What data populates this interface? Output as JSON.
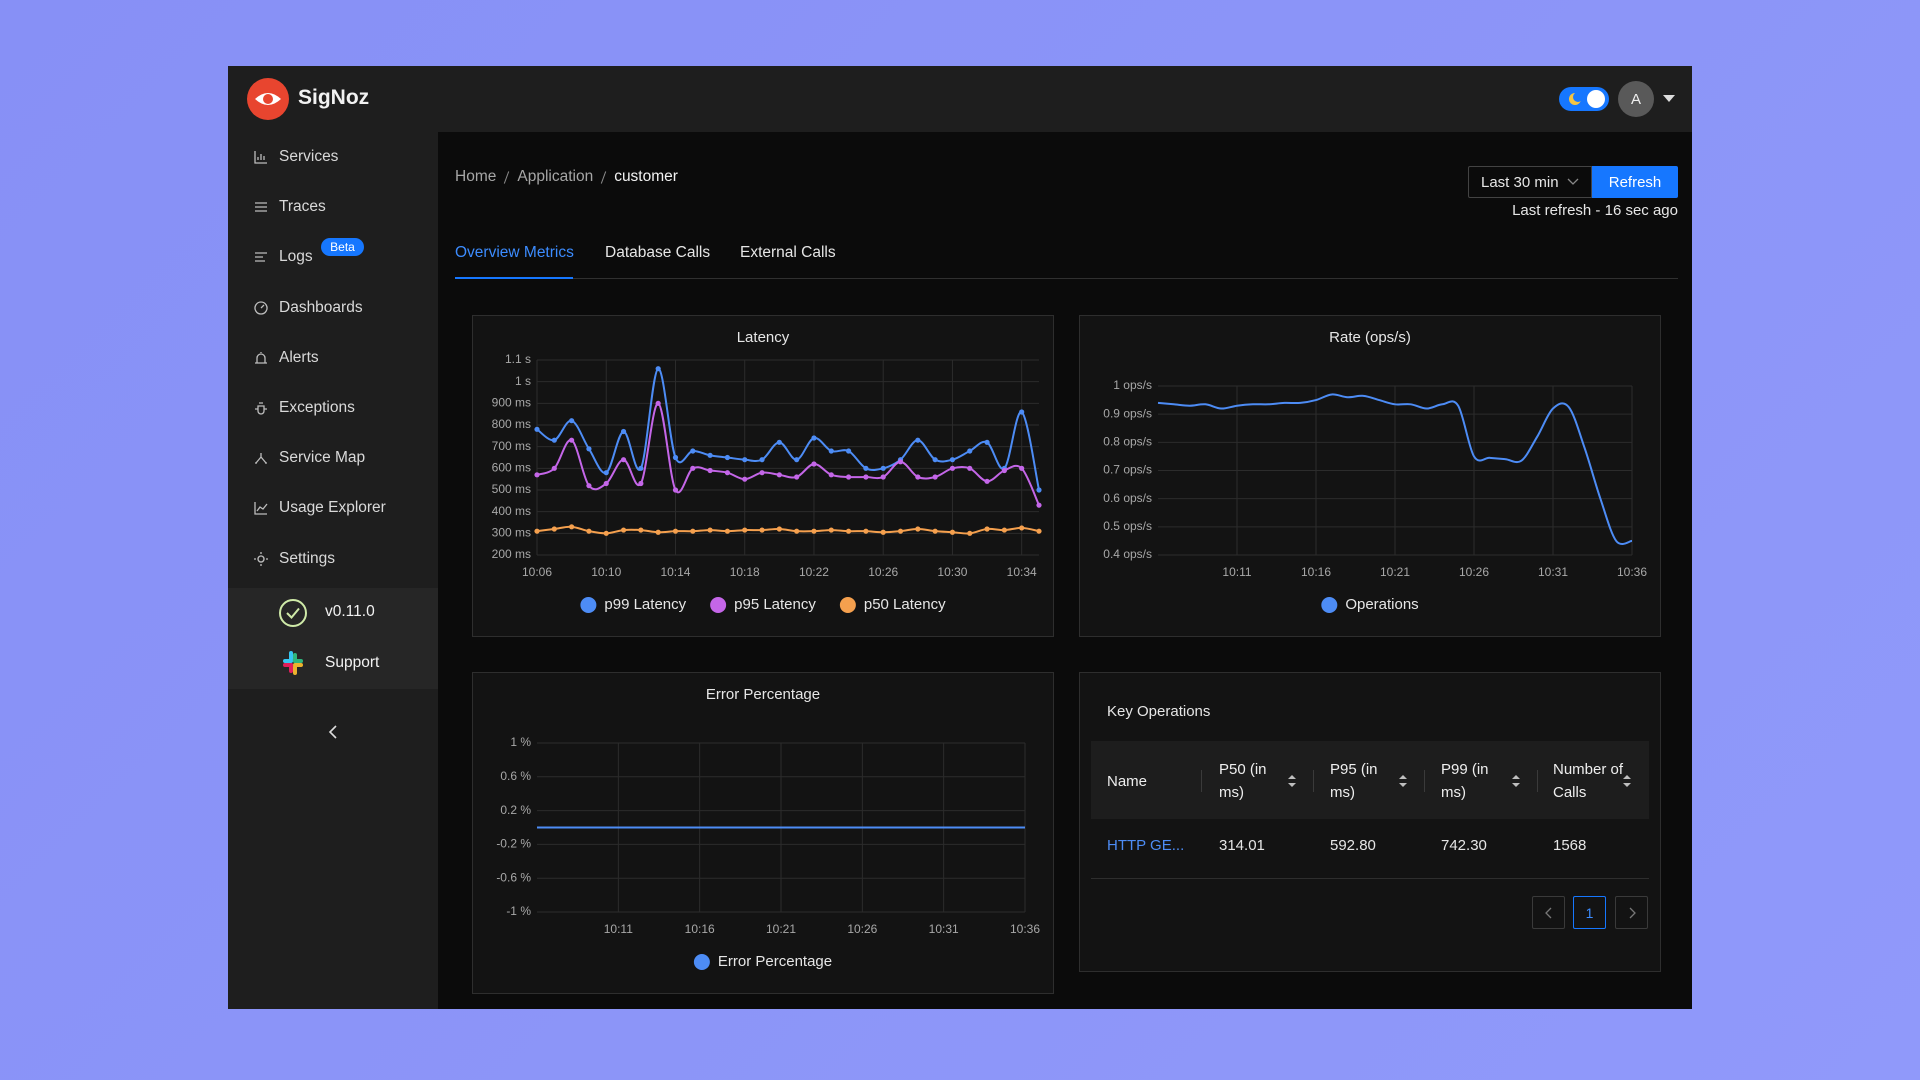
{
  "header": {
    "brand": "SigNoz",
    "avatar": "A"
  },
  "sidebar": {
    "items": [
      "Services",
      "Traces",
      "Logs",
      "Dashboards",
      "Alerts",
      "Exceptions",
      "Service Map",
      "Usage Explorer",
      "Settings"
    ],
    "badge": "Beta",
    "version": "v0.11.0",
    "support": "Support"
  },
  "breadcrumb": [
    "Home",
    "Application",
    "customer"
  ],
  "time_range": "Last 30 min",
  "refresh": "Refresh",
  "last_refresh": "Last refresh - 16 sec ago",
  "tabs": [
    "Overview Metrics",
    "Database Calls",
    "External Calls"
  ],
  "chart_data": [
    {
      "type": "line",
      "title": "Latency",
      "x": [
        "10:06",
        "10:07",
        "10:08",
        "10:09",
        "10:10",
        "10:11",
        "10:12",
        "10:13",
        "10:14",
        "10:15",
        "10:16",
        "10:17",
        "10:18",
        "10:19",
        "10:20",
        "10:21",
        "10:22",
        "10:23",
        "10:24",
        "10:25",
        "10:26",
        "10:27",
        "10:28",
        "10:29",
        "10:30",
        "10:31",
        "10:32",
        "10:33",
        "10:34",
        "10:35"
      ],
      "xlim": [
        "10:06",
        "10:35"
      ],
      "xticks": [
        "10:06",
        "10:10",
        "10:14",
        "10:18",
        "10:22",
        "10:26",
        "10:30",
        "10:34"
      ],
      "ylim": [
        200,
        1100
      ],
      "yticks": [
        {
          "value": 200,
          "label": "200 ms"
        },
        {
          "value": 300,
          "label": "300 ms"
        },
        {
          "value": 400,
          "label": "400 ms"
        },
        {
          "value": 500,
          "label": "500 ms"
        },
        {
          "value": 600,
          "label": "600 ms"
        },
        {
          "value": 700,
          "label": "700 ms"
        },
        {
          "value": 800,
          "label": "800 ms"
        },
        {
          "value": 900,
          "label": "900 ms"
        },
        {
          "value": 1000,
          "label": "1 s"
        },
        {
          "value": 1100,
          "label": "1.1 s"
        }
      ],
      "grid": true,
      "markers": true,
      "series": [
        {
          "name": "p99 Latency",
          "color": "#4d8cf5",
          "values": [
            780,
            730,
            820,
            690,
            580,
            770,
            600,
            1060,
            650,
            680,
            660,
            650,
            640,
            640,
            720,
            640,
            740,
            680,
            680,
            600,
            600,
            640,
            730,
            640,
            640,
            680,
            720,
            600,
            860,
            500
          ]
        },
        {
          "name": "p95 Latency",
          "color": "#c466e8",
          "values": [
            570,
            600,
            730,
            520,
            530,
            640,
            530,
            900,
            500,
            600,
            590,
            580,
            550,
            580,
            570,
            560,
            620,
            570,
            560,
            560,
            560,
            630,
            560,
            560,
            600,
            600,
            540,
            590,
            600,
            430
          ]
        },
        {
          "name": "p50 Latency",
          "color": "#f5a04e",
          "values": [
            310,
            320,
            330,
            310,
            300,
            315,
            315,
            305,
            310,
            310,
            315,
            310,
            315,
            315,
            320,
            310,
            310,
            315,
            310,
            310,
            305,
            310,
            320,
            310,
            305,
            300,
            320,
            315,
            325,
            310
          ]
        }
      ]
    },
    {
      "type": "line",
      "title": "Rate (ops/s)",
      "x": [
        "10:06",
        "10:07",
        "10:08",
        "10:09",
        "10:10",
        "10:11",
        "10:12",
        "10:13",
        "10:14",
        "10:15",
        "10:16",
        "10:17",
        "10:18",
        "10:19",
        "10:20",
        "10:21",
        "10:22",
        "10:23",
        "10:24",
        "10:25",
        "10:26",
        "10:27",
        "10:28",
        "10:29",
        "10:30",
        "10:31",
        "10:32",
        "10:33",
        "10:34",
        "10:35",
        "10:36"
      ],
      "xlim": [
        "10:06",
        "10:36"
      ],
      "xticks": [
        "10:11",
        "10:16",
        "10:21",
        "10:26",
        "10:31",
        "10:36"
      ],
      "ylim": [
        0.4,
        1
      ],
      "yticks": [
        {
          "value": 0.4,
          "label": "0.4 ops/s"
        },
        {
          "value": 0.5,
          "label": "0.5 ops/s"
        },
        {
          "value": 0.6,
          "label": "0.6 ops/s"
        },
        {
          "value": 0.7,
          "label": "0.7 ops/s"
        },
        {
          "value": 0.8,
          "label": "0.8 ops/s"
        },
        {
          "value": 0.9,
          "label": "0.9 ops/s"
        },
        {
          "value": 1,
          "label": "1 ops/s"
        }
      ],
      "grid": true,
      "markers": false,
      "series": [
        {
          "name": "Operations",
          "color": "#4d8cf5",
          "values": [
            0.94,
            0.935,
            0.93,
            0.935,
            0.92,
            0.93,
            0.935,
            0.935,
            0.94,
            0.94,
            0.95,
            0.97,
            0.96,
            0.965,
            0.95,
            0.935,
            0.935,
            0.92,
            0.935,
            0.93,
            0.75,
            0.745,
            0.74,
            0.735,
            0.82,
            0.92,
            0.925,
            0.78,
            0.6,
            0.45,
            0.45
          ]
        }
      ]
    },
    {
      "type": "line",
      "title": "Error Percentage",
      "x": [
        "10:06",
        "10:07",
        "10:08",
        "10:09",
        "10:10",
        "10:11",
        "10:12",
        "10:13",
        "10:14",
        "10:15",
        "10:16",
        "10:17",
        "10:18",
        "10:19",
        "10:20",
        "10:21",
        "10:22",
        "10:23",
        "10:24",
        "10:25",
        "10:26",
        "10:27",
        "10:28",
        "10:29",
        "10:30",
        "10:31",
        "10:32",
        "10:33",
        "10:34",
        "10:35",
        "10:36"
      ],
      "xlim": [
        "10:06",
        "10:36"
      ],
      "xticks": [
        "10:11",
        "10:16",
        "10:21",
        "10:26",
        "10:31",
        "10:36"
      ],
      "ylim": [
        -1,
        1
      ],
      "yticks": [
        {
          "value": -1,
          "label": "-1 %"
        },
        {
          "value": -0.6,
          "label": "-0.6 %"
        },
        {
          "value": -0.2,
          "label": "-0.2 %"
        },
        {
          "value": 0.2,
          "label": "0.2 %"
        },
        {
          "value": 0.6,
          "label": "0.6 %"
        },
        {
          "value": 1,
          "label": "1 %"
        }
      ],
      "grid": true,
      "markers": false,
      "series": [
        {
          "name": "Error Percentage",
          "color": "#4d8cf5",
          "values": [
            0,
            0,
            0,
            0,
            0,
            0,
            0,
            0,
            0,
            0,
            0,
            0,
            0,
            0,
            0,
            0,
            0,
            0,
            0,
            0,
            0,
            0,
            0,
            0,
            0,
            0,
            0,
            0,
            0,
            0,
            0
          ]
        }
      ]
    }
  ],
  "table": {
    "title": "Key Operations",
    "columns": [
      "Name",
      "P50 (in ms)",
      "P95 (in ms)",
      "P99 (in ms)",
      "Number of Calls"
    ],
    "rows": [
      [
        "HTTP GE...",
        "314.01",
        "592.80",
        "742.30",
        "1568"
      ]
    ],
    "page": "1"
  }
}
